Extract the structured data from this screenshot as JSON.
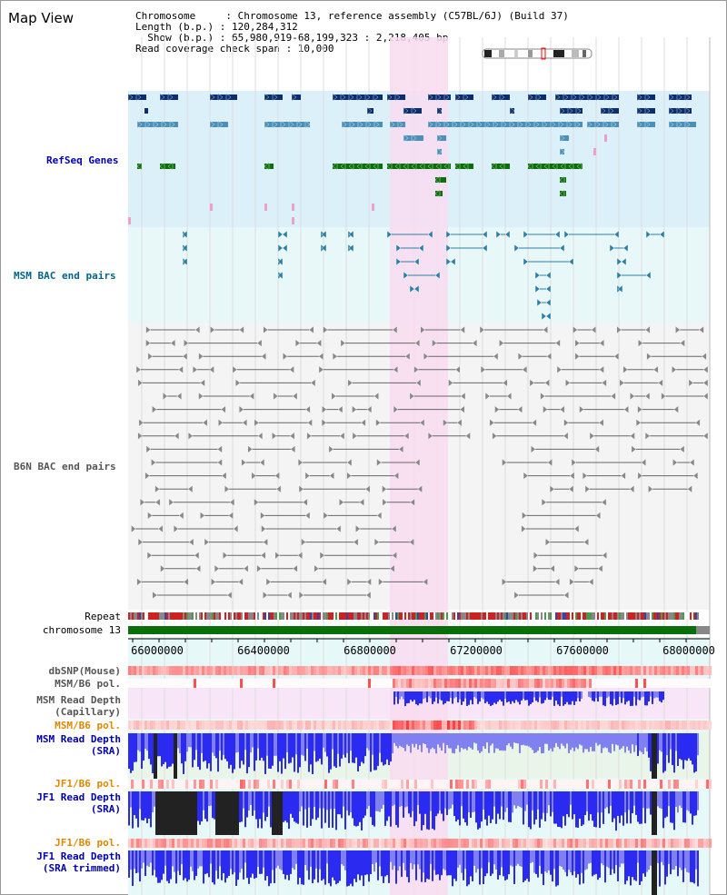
{
  "header": {
    "title": "Map View",
    "chromosome_line": "Chromosome     : Chromosome 13, reference assembly (C57BL/6J) (Build 37)",
    "length_line": "Length (b.p.) : 120,284,312",
    "show_line": "Show (b.p.) : 65,980,919-68,199,323 : 2,218,405 bp",
    "coverage_line": "Read coverage check span : 10,000"
  },
  "tracks": {
    "refseq": "RefSeq Genes",
    "msm_bac": "MSM BAC end pairs",
    "b6n_bac": "B6N BAC end pairs",
    "repeat": "Repeat",
    "chromosome": "chromosome 13",
    "dbsnp": "dbSNP(Mouse)",
    "msm_b6_pol_1": "MSM/B6 pol.",
    "msm_depth_cap": "MSM Read Depth\n(Capillary)",
    "msm_b6_pol_2": "MSM/B6 pol.",
    "msm_depth_sra": "MSM Read Depth\n(SRA)",
    "jf1_b6_pol_1": "JF1/B6 pol.",
    "jf1_depth_sra": "JF1 Read Depth\n(SRA)",
    "jf1_b6_pol_2": "JF1/B6 pol.",
    "jf1_depth_trim": "JF1 Read Depth\n(SRA trimmed)"
  },
  "axis": {
    "ticks": [
      "66000000",
      "66400000",
      "66800000",
      "67200000",
      "67600000",
      "68000000"
    ]
  },
  "colors": {
    "refseq_bg": "#dcf0fa",
    "msm_bg": "#e8f8f8",
    "b6n_bg": "#f4f4f4",
    "highlight": "#f9dcf0",
    "gene_dark": "#0a2e6e",
    "gene_mid": "#4a90b8",
    "gene_green": "#0a6e0a",
    "chromosome": "#0a6e0a"
  }
}
